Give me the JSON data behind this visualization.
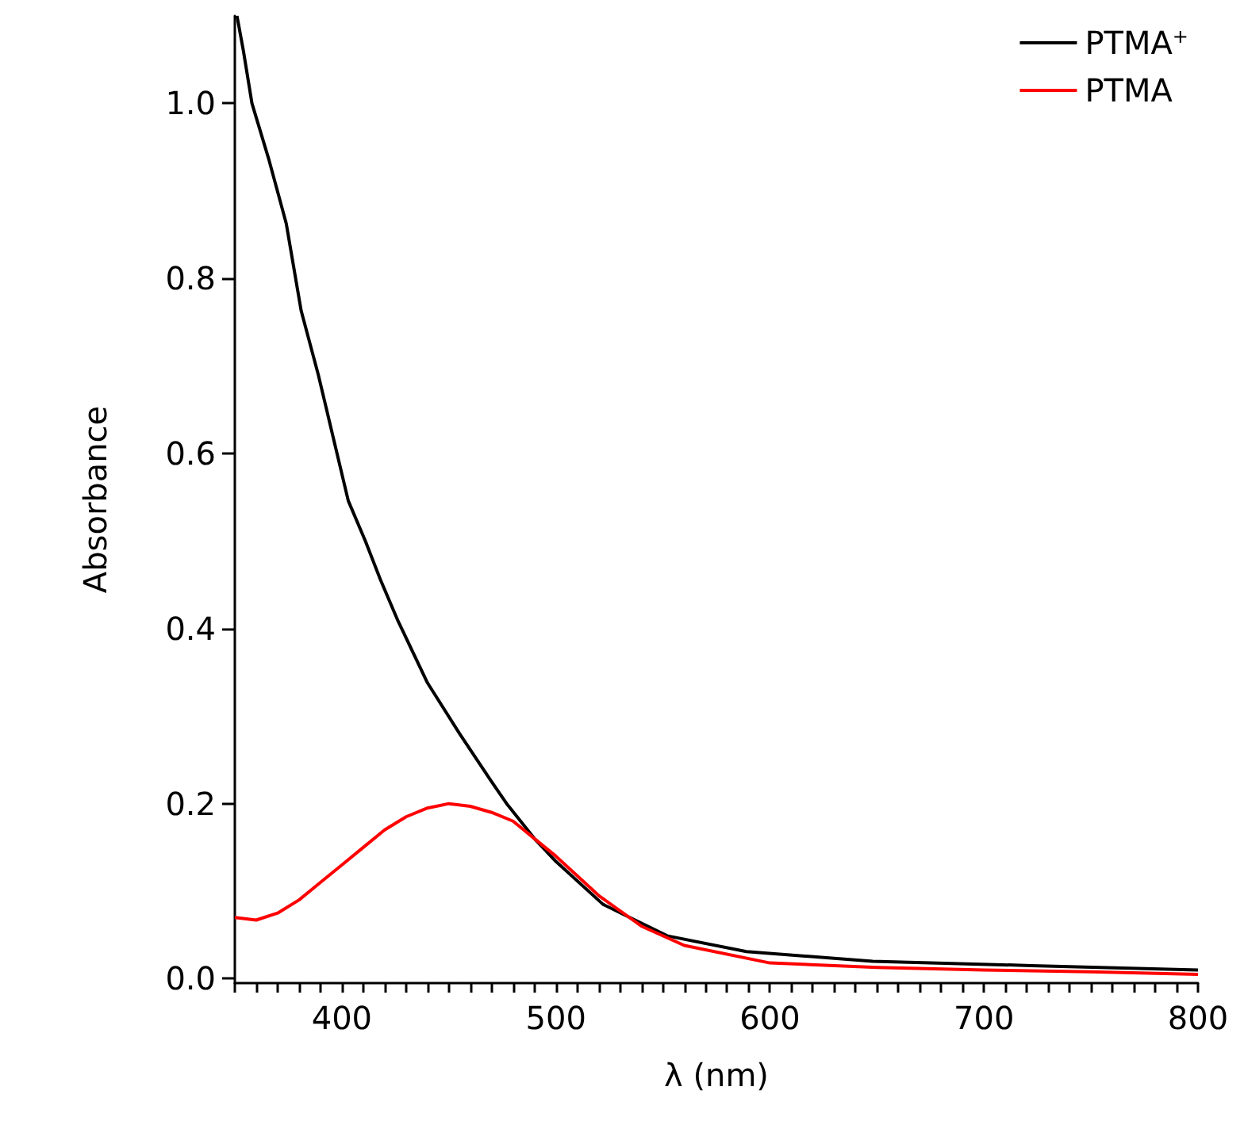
{
  "chart_data": {
    "type": "line",
    "xlabel": "λ (nm)",
    "ylabel": "Absorbance",
    "legend": "top right",
    "grid": false,
    "marker": "none",
    "line_style": "solid",
    "xlim": [
      350,
      800
    ],
    "ylim": [
      -0.005,
      1.1
    ],
    "xticks": [
      {
        "value": 350,
        "label": null
      },
      {
        "value": 360,
        "label": null
      },
      {
        "value": 370,
        "label": null
      },
      {
        "value": 380,
        "label": null
      },
      {
        "value": 390,
        "label": null
      },
      {
        "value": 400,
        "label": "400"
      },
      {
        "value": 410,
        "label": null
      },
      {
        "value": 420,
        "label": null
      },
      {
        "value": 430,
        "label": null
      },
      {
        "value": 440,
        "label": null
      },
      {
        "value": 450,
        "label": null
      },
      {
        "value": 460,
        "label": null
      },
      {
        "value": 470,
        "label": null
      },
      {
        "value": 480,
        "label": null
      },
      {
        "value": 490,
        "label": null
      },
      {
        "value": 500,
        "label": "500"
      },
      {
        "value": 510,
        "label": null
      },
      {
        "value": 520,
        "label": null
      },
      {
        "value": 530,
        "label": null
      },
      {
        "value": 540,
        "label": null
      },
      {
        "value": 550,
        "label": null
      },
      {
        "value": 560,
        "label": null
      },
      {
        "value": 570,
        "label": null
      },
      {
        "value": 580,
        "label": null
      },
      {
        "value": 590,
        "label": null
      },
      {
        "value": 600,
        "label": "600"
      },
      {
        "value": 610,
        "label": null
      },
      {
        "value": 620,
        "label": null
      },
      {
        "value": 630,
        "label": null
      },
      {
        "value": 640,
        "label": null
      },
      {
        "value": 650,
        "label": null
      },
      {
        "value": 660,
        "label": null
      },
      {
        "value": 670,
        "label": null
      },
      {
        "value": 680,
        "label": null
      },
      {
        "value": 690,
        "label": null
      },
      {
        "value": 700,
        "label": "700"
      },
      {
        "value": 710,
        "label": null
      },
      {
        "value": 720,
        "label": null
      },
      {
        "value": 730,
        "label": null
      },
      {
        "value": 740,
        "label": null
      },
      {
        "value": 750,
        "label": null
      },
      {
        "value": 760,
        "label": null
      },
      {
        "value": 770,
        "label": null
      },
      {
        "value": 780,
        "label": null
      },
      {
        "value": 790,
        "label": null
      },
      {
        "value": 800,
        "label": "800"
      }
    ],
    "yticks": [
      {
        "value": 0,
        "label": "0.0"
      },
      {
        "value": 0.2,
        "label": "0.2"
      },
      {
        "value": 0.4,
        "label": "0.4"
      },
      {
        "value": 0.6,
        "label": "0.6"
      },
      {
        "value": 0.8,
        "label": "0.8"
      },
      {
        "value": 1.0,
        "label": "1.0"
      }
    ],
    "series": [
      {
        "name": "PTMA$^{+}$",
        "color": "#000000",
        "x": [
          351,
          354,
          358,
          366,
          374,
          381,
          389,
          396,
          403,
          411,
          418,
          426,
          440,
          455,
          470,
          477,
          490,
          500,
          522,
          552,
          589,
          648,
          722,
          800
        ],
        "values": [
          1.1,
          1.06,
          1.0,
          0.935,
          0.863,
          0.763,
          0.69,
          0.618,
          0.546,
          0.5,
          0.456,
          0.41,
          0.338,
          0.28,
          0.225,
          0.2,
          0.16,
          0.134,
          0.085,
          0.049,
          0.031,
          0.02,
          0.015,
          0.01
        ]
      },
      {
        "name": "PTMA",
        "color": "#ff0000",
        "x": [
          350,
          360,
          370,
          380,
          390,
          400,
          410,
          420,
          430,
          440,
          450,
          460,
          470,
          480,
          490,
          500,
          520,
          540,
          560,
          600,
          650,
          700,
          750,
          800
        ],
        "values": [
          0.07,
          0.067,
          0.075,
          0.09,
          0.11,
          0.13,
          0.15,
          0.17,
          0.185,
          0.195,
          0.2,
          0.197,
          0.19,
          0.18,
          0.16,
          0.14,
          0.095,
          0.06,
          0.038,
          0.018,
          0.013,
          0.01,
          0.008,
          0.005
        ]
      }
    ]
  }
}
